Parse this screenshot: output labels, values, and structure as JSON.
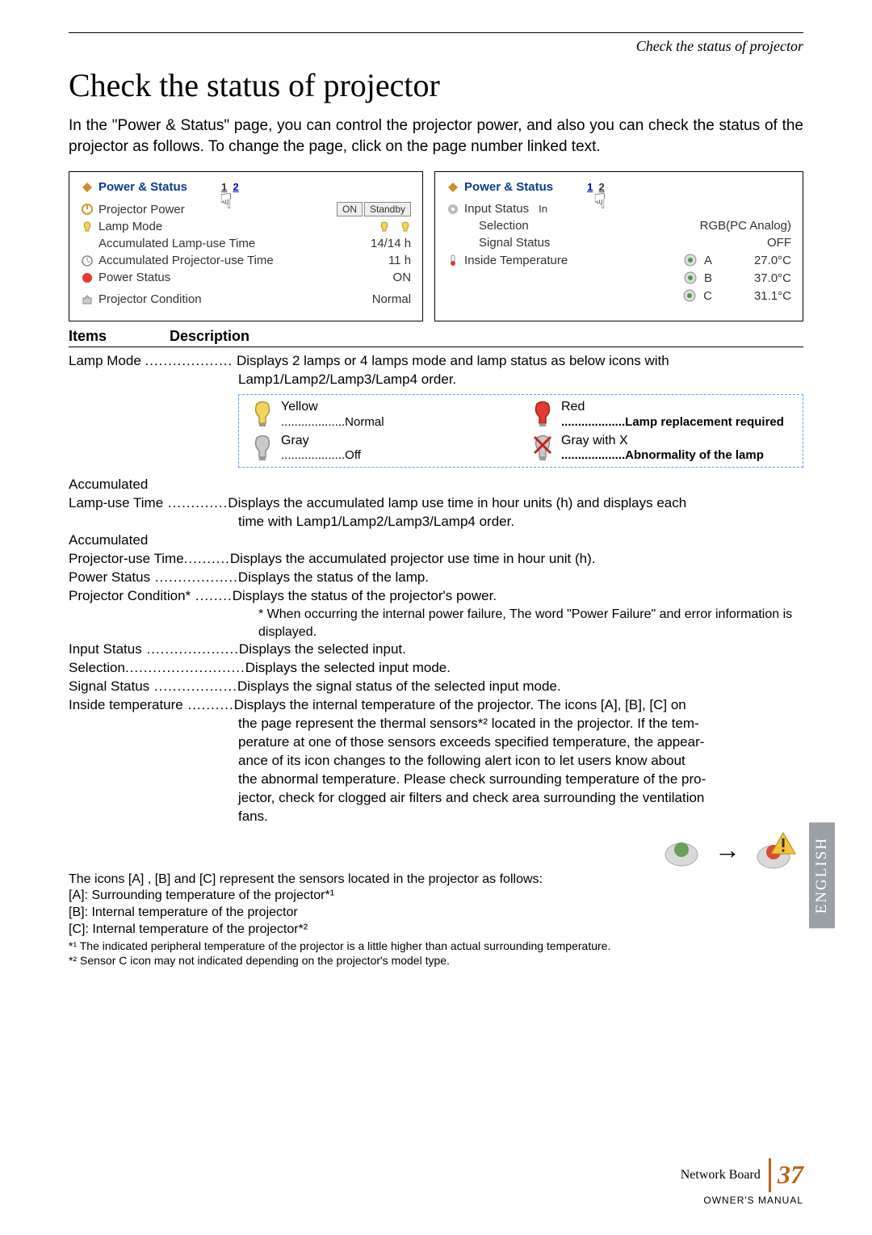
{
  "header_title": "Check the status of projector",
  "main_title": "Check the status of projector",
  "intro": "In the \"Power & Status\" page, you can control the projector power, and also you can check the status of the projector as follows. To change the page, click on the page number linked text.",
  "panel_left": {
    "title": "Power & Status",
    "page_cur": "1",
    "page_other": "2",
    "rows": [
      {
        "label": "Projector Power",
        "value_pre": "ON",
        "value_btn": "Standby"
      },
      {
        "label": "Lamp Mode",
        "lamps": true
      },
      {
        "label": "Accumulated Lamp-use Time",
        "value": "14/14 h"
      },
      {
        "label": "Accumulated Projector-use Time",
        "value": "11 h"
      },
      {
        "label": "Power Status",
        "value": "ON"
      },
      {
        "label": "Projector Condition",
        "value": "Normal"
      }
    ]
  },
  "panel_right": {
    "title": "Power & Status",
    "page_other": "1",
    "page_cur": "2",
    "rows": [
      {
        "label": "Input Status"
      },
      {
        "sublabel": "Selection",
        "value": "RGB(PC Analog)"
      },
      {
        "sublabel": "Signal Status",
        "value": "OFF"
      },
      {
        "label": "Inside Temperature",
        "led": "g",
        "led_label": "A",
        "value": "27.0°C"
      },
      {
        "led": "g",
        "led_label": "B",
        "value": "37.0°C"
      },
      {
        "led": "g",
        "led_label": "C",
        "value": "31.1°C"
      }
    ]
  },
  "table_head": {
    "c1": "Items",
    "c2": "Description"
  },
  "lamp_mode": {
    "term": "Lamp Mode",
    "desc1": "Displays 2 lamps or 4 lamps mode and lamp status as below icons with",
    "desc2": "Lamp1/Lamp2/Lamp3/Lamp4 order.",
    "cells": [
      {
        "color": "#f3d35a",
        "top": "Yellow",
        "sub": "...................Normal"
      },
      {
        "color": "#e33b2f",
        "top": "Red",
        "sub": "...................Lamp replacement required",
        "bold": true
      },
      {
        "color": "#b7b7b7",
        "top": "Gray",
        "sub": "...................Off"
      },
      {
        "color": "#b7b7b7",
        "x": true,
        "top": "Gray with X",
        "sub": "...................Abnormality of the lamp",
        "bold": true
      }
    ]
  },
  "items": [
    {
      "pre": "Accumulated"
    },
    {
      "term": "Lamp-use Time",
      "dots": " .............",
      "desc": "Displays the accumulated lamp use time in hour units (h) and displays each",
      "cont": "time with Lamp1/Lamp2/Lamp3/Lamp4 order."
    },
    {
      "pre": "Accumulated"
    },
    {
      "term": "Projector-use Time",
      "dots": "..........",
      "desc": "Displays the accumulated projector use time in hour unit (h)."
    },
    {
      "term": "Power Status",
      "dots": " ..................",
      "desc": "Displays the status of the lamp."
    },
    {
      "term": "Projector Condition*",
      "dots": " ........",
      "desc": "Displays the status of the projector's power."
    },
    {
      "note": "* When occurring the internal power failure, The word \"Power Failure\" and error information is displayed."
    },
    {
      "term": "Input Status",
      "dots": " ....................",
      "desc": "Displays the selected input."
    },
    {
      "term": "Selection",
      "dots": "..........................",
      "desc": "Displays the selected input mode."
    },
    {
      "term": "Signal Status",
      "dots": " ..................",
      "desc": "Displays the signal status of the selected input mode."
    },
    {
      "term": "Inside temperature",
      "dots": " ..........",
      "desc": "Displays the internal temperature of the projector. The icons [A], [B], [C] on"
    }
  ],
  "inside_cont": [
    "the page represent the thermal sensors*² located in the projector. If the tem-",
    "perature at one of those sensors exceeds specified temperature, the appear-",
    "ance of its icon changes to the following alert icon to let users know about",
    "the abnormal temperature. Please check surrounding temperature of the pro-",
    "jector, check for clogged air filters and check area surrounding the ventilation",
    "fans."
  ],
  "notes": [
    "The icons [A] , [B] and [C] represent the sensors located in the projector as follows:",
    "[A]: Surrounding temperature of the projector*¹",
    "[B]: Internal temperature of the projector",
    "[C]: Internal temperature of the projector*²"
  ],
  "footnotes": [
    "*¹ The indicated peripheral temperature of the projector is a little higher than actual surrounding temperature.",
    "*² Sensor C icon may not indicated depending on the projector's model type."
  ],
  "side_tab": "ENGLISH",
  "footer": {
    "nb": "Network Board",
    "page": "37",
    "om": "OWNER'S MANUAL"
  }
}
